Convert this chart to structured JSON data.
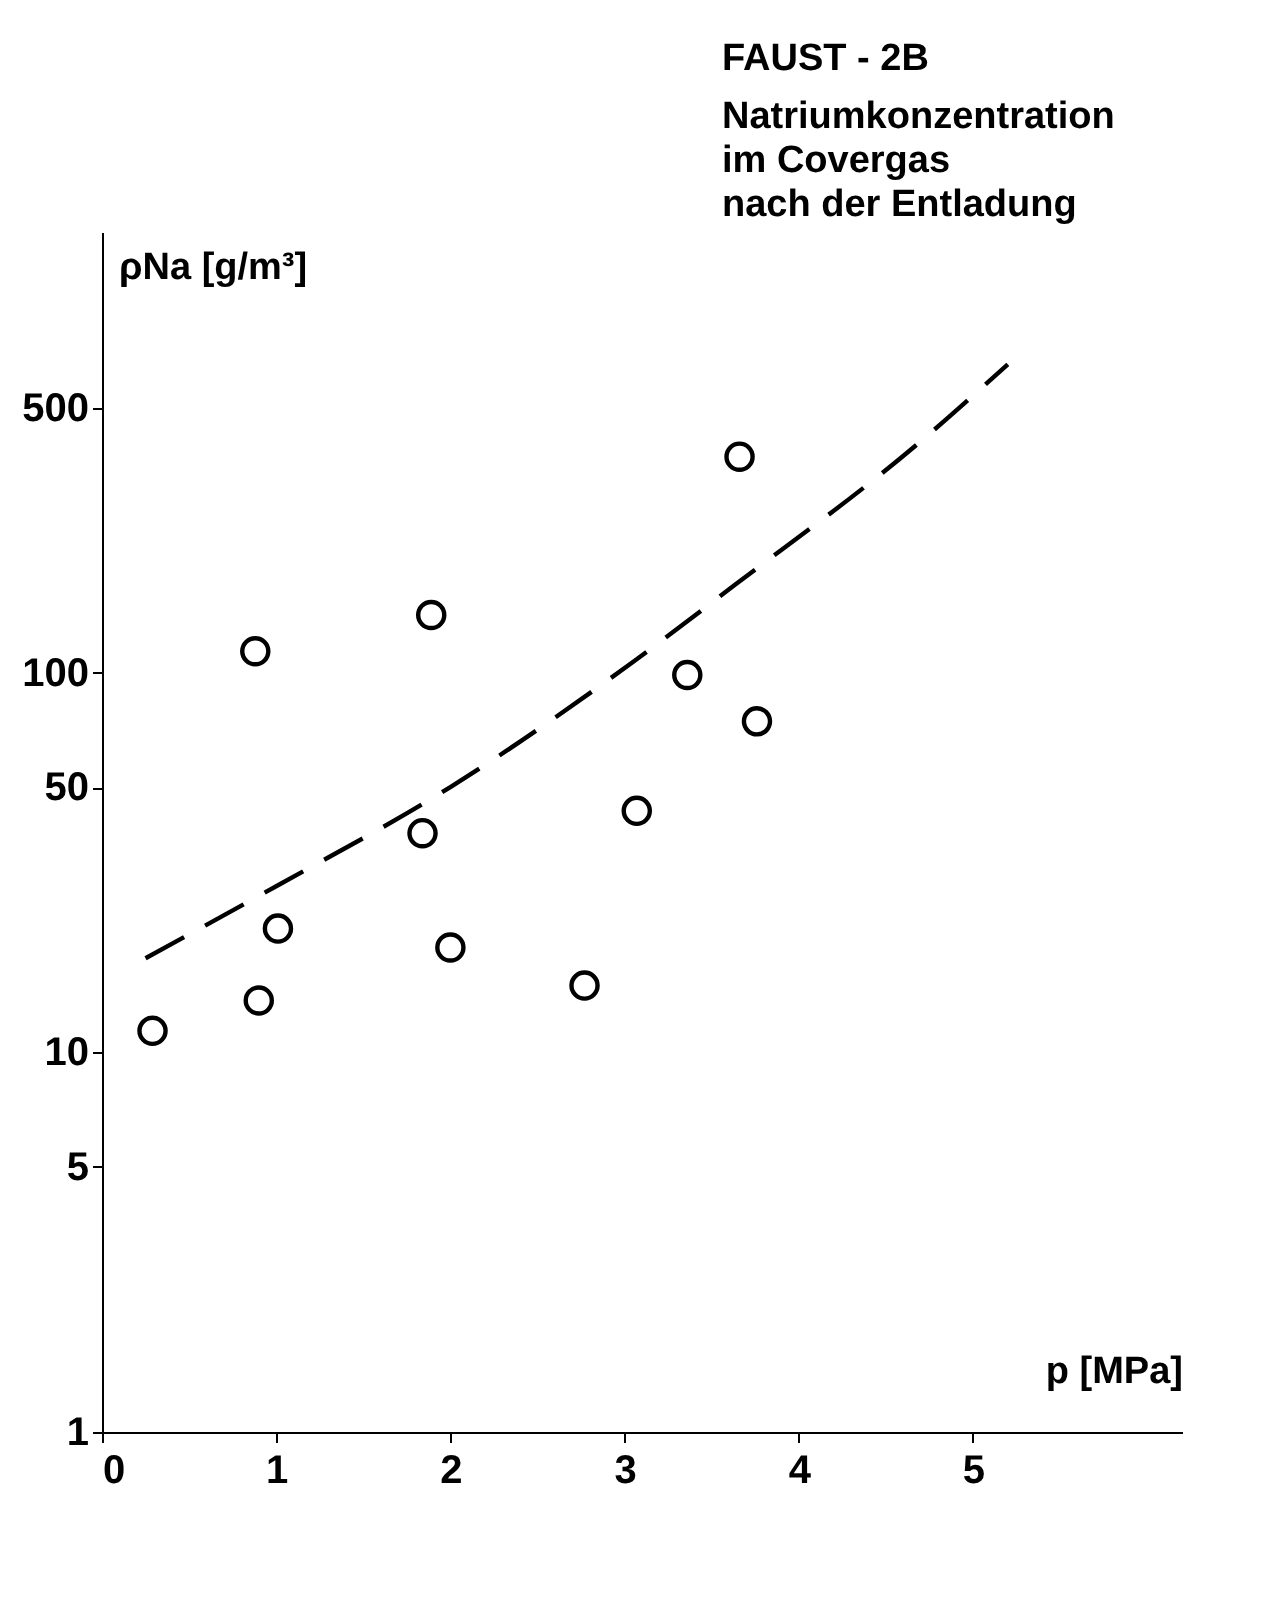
{
  "chart_data": {
    "type": "scatter",
    "title": "FAUST - 2B",
    "subtitle": [
      "Natriumkonzentration",
      "im Covergas",
      "nach der Entladung"
    ],
    "xlabel": "p [MPa]",
    "ylabel": "ρNa [g/m³]",
    "log": "y",
    "xlim": [
      0,
      6.2
    ],
    "xticks": [
      0,
      1,
      2,
      3,
      4,
      5
    ],
    "ylim": [
      1,
      1450
    ],
    "yticks": [
      1,
      5,
      10,
      50,
      100,
      500
    ],
    "grid": false,
    "line_style": "dashed",
    "series": [
      {
        "marker": "circle",
        "color": "#000000",
        "x": [
          0.29,
          0.88,
          0.9,
          1.01,
          1.89,
          1.84,
          2.0,
          2.77,
          3.07,
          3.36,
          3.66,
          3.76
        ],
        "values": [
          11.4,
          114,
          13.7,
          21.2,
          142,
          37.8,
          18.9,
          15.0,
          43.3,
          98.7,
          371,
          74.5
        ]
      },
      {
        "type": "line",
        "color": "#000000",
        "x": [
          0.25,
          1.0,
          2.0,
          3.05,
          3.63,
          4.68,
          5.2
        ],
        "values": [
          17.7,
          27.4,
          50,
          107,
          170,
          400,
          650
        ]
      }
    ]
  }
}
